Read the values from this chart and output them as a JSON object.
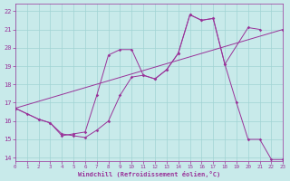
{
  "bg_color": "#c8eaea",
  "line_color": "#993399",
  "grid_color": "#a0d4d4",
  "xlim": [
    0,
    23
  ],
  "ylim": [
    13.8,
    22.4
  ],
  "xticks": [
    0,
    1,
    2,
    3,
    4,
    5,
    6,
    7,
    8,
    9,
    10,
    11,
    12,
    13,
    14,
    15,
    16,
    17,
    18,
    19,
    20,
    21,
    22,
    23
  ],
  "yticks": [
    14,
    15,
    16,
    17,
    18,
    19,
    20,
    21,
    22
  ],
  "line1_x": [
    0,
    1,
    2,
    3,
    4,
    5,
    6,
    7,
    8,
    9,
    10,
    11,
    12,
    13,
    14,
    15,
    16,
    17,
    18,
    19,
    20,
    21,
    22,
    23
  ],
  "line1_y": [
    16.7,
    16.4,
    16.1,
    15.9,
    15.3,
    15.2,
    15.1,
    15.5,
    16.0,
    17.4,
    18.4,
    18.5,
    18.3,
    18.8,
    19.7,
    21.8,
    21.5,
    21.6,
    19.1,
    17.0,
    15.0,
    15.0,
    13.9,
    13.9
  ],
  "line2_x": [
    0,
    2,
    3,
    4,
    5,
    6,
    7,
    8,
    9,
    10,
    11,
    12,
    13,
    14,
    15,
    16,
    17,
    18,
    20,
    21
  ],
  "line2_y": [
    16.7,
    16.1,
    15.9,
    15.2,
    15.3,
    15.4,
    17.4,
    19.6,
    19.9,
    19.9,
    18.5,
    18.3,
    18.8,
    19.7,
    21.8,
    21.5,
    21.6,
    19.1,
    21.1,
    21.0
  ],
  "line3_x": [
    0,
    23
  ],
  "line3_y": [
    16.7,
    21.0
  ],
  "xlabel": "Windchill (Refroidissement éolien,°C)"
}
